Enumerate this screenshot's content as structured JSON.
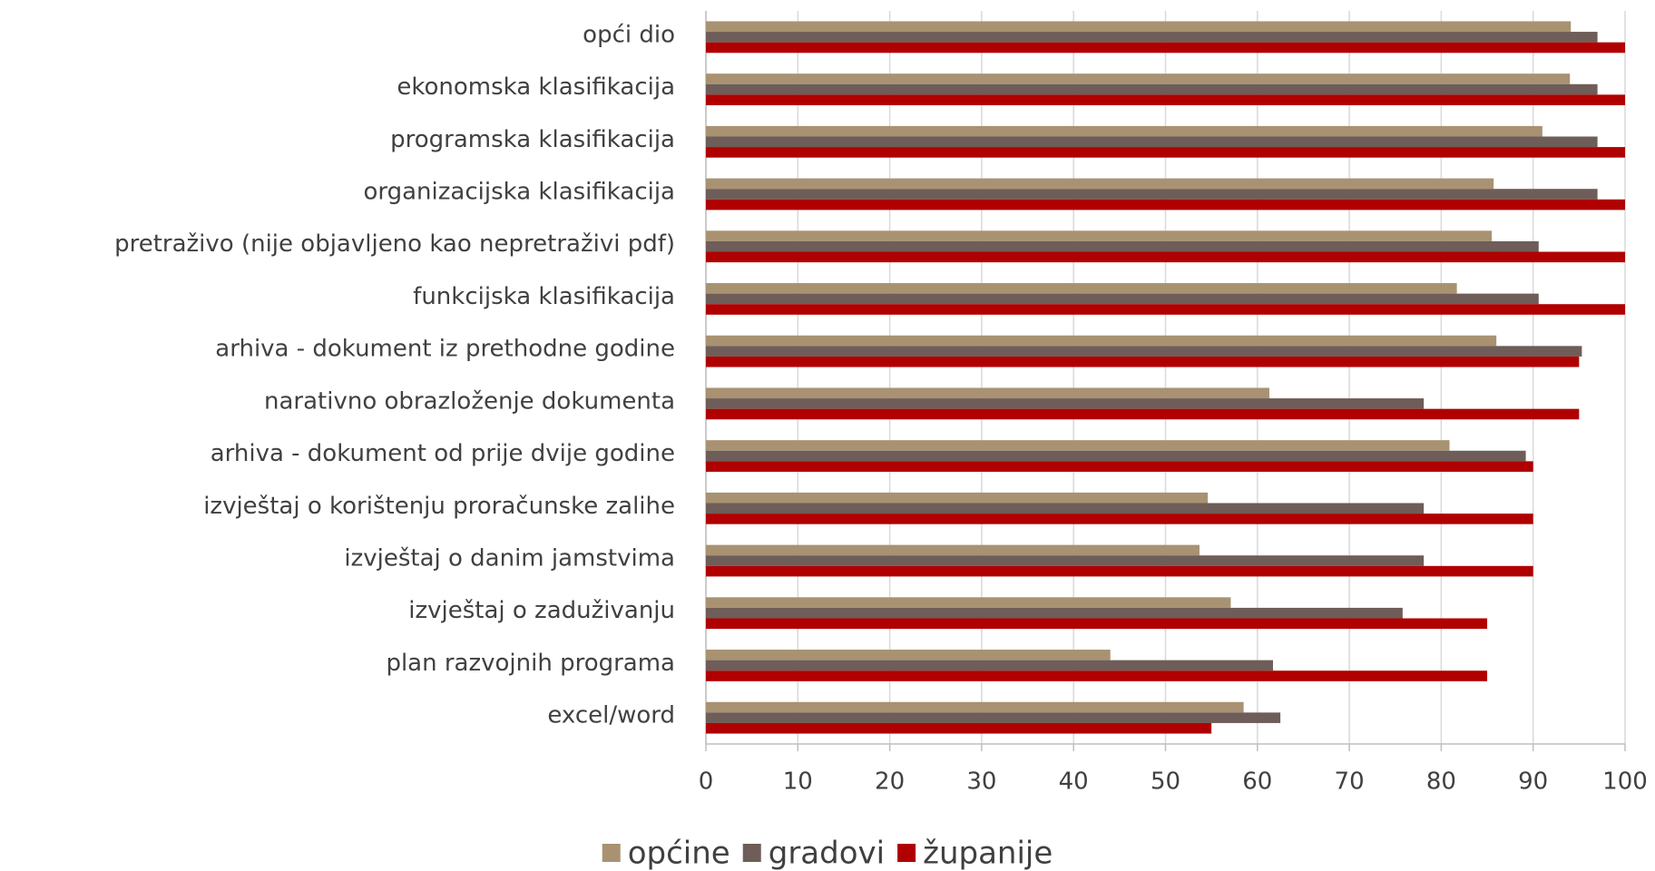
{
  "chart_data": {
    "type": "bar",
    "orientation": "horizontal",
    "categories": [
      "opći dio",
      "ekonomska klasifikacija",
      "programska klasifikacija",
      "organizacijska klasifikacija",
      "pretraživo (nije objavljeno kao nepretraživi pdf)",
      "funkcijska klasifikacija",
      "arhiva - dokument iz prethodne godine",
      "narativno obrazloženje dokumenta",
      "arhiva - dokument od prije dvije godine",
      "izvještaj o korištenju proračunske zalihe",
      "izvještaj o danim jamstvima",
      "izvještaj o zaduživanju",
      "plan razvojnih programa",
      "excel/word"
    ],
    "series": [
      {
        "name": "općine",
        "color": "#a89272",
        "values": [
          94.1,
          94,
          91,
          85.7,
          85.5,
          81.7,
          86,
          61.3,
          80.9,
          54.6,
          53.7,
          57.1,
          44,
          58.5
        ]
      },
      {
        "name": "gradovi",
        "color": "#6e5d58",
        "values": [
          97,
          97,
          97,
          97,
          90.6,
          90.6,
          95.3,
          78.1,
          89.2,
          78.1,
          78.1,
          75.8,
          61.7,
          62.5
        ]
      },
      {
        "name": "županije",
        "color": "#b00000",
        "values": [
          100,
          100,
          100,
          100,
          100,
          100,
          95,
          95,
          90,
          90,
          90,
          85,
          85,
          55
        ]
      }
    ],
    "xlim": [
      0,
      100
    ],
    "xticks": [
      0,
      10,
      20,
      30,
      40,
      50,
      60,
      70,
      80,
      90,
      100
    ],
    "grid": true,
    "legend": "bottom"
  }
}
